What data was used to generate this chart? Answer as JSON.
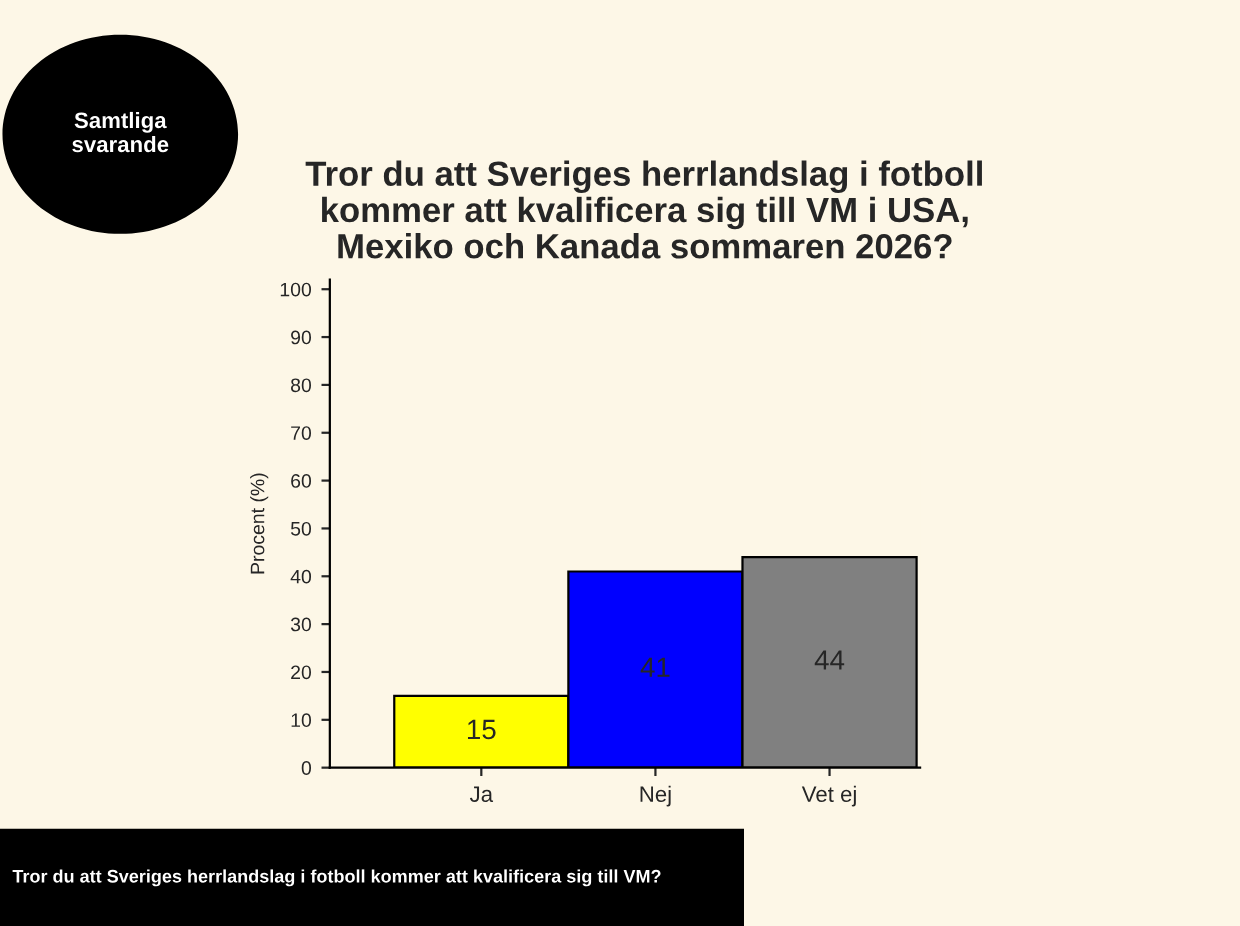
{
  "chart_data": {
    "type": "bar",
    "title": "Tror du att Sveriges herrlandslag i fotboll kommer att kvalificera sig till VM i USA, Mexiko och Kanada sommaren 2026?",
    "ylabel": "Procent (%)",
    "categories": [
      "Ja",
      "Nej",
      "Vet ej"
    ],
    "values": [
      15,
      41,
      44
    ],
    "colors": [
      "#ffff00",
      "#0000ff",
      "#808080"
    ],
    "data_labels": true,
    "ylim": [
      0,
      102
    ],
    "yticks": [
      0,
      10,
      20,
      30,
      40,
      50,
      60,
      70,
      80,
      90,
      100
    ],
    "grid": false,
    "legend": false,
    "annotations": [
      "Samtliga\nsvarande",
      "Tror du att Sveriges herrlandslag i fotboll kommer att kvalificera sig till VM?"
    ]
  }
}
